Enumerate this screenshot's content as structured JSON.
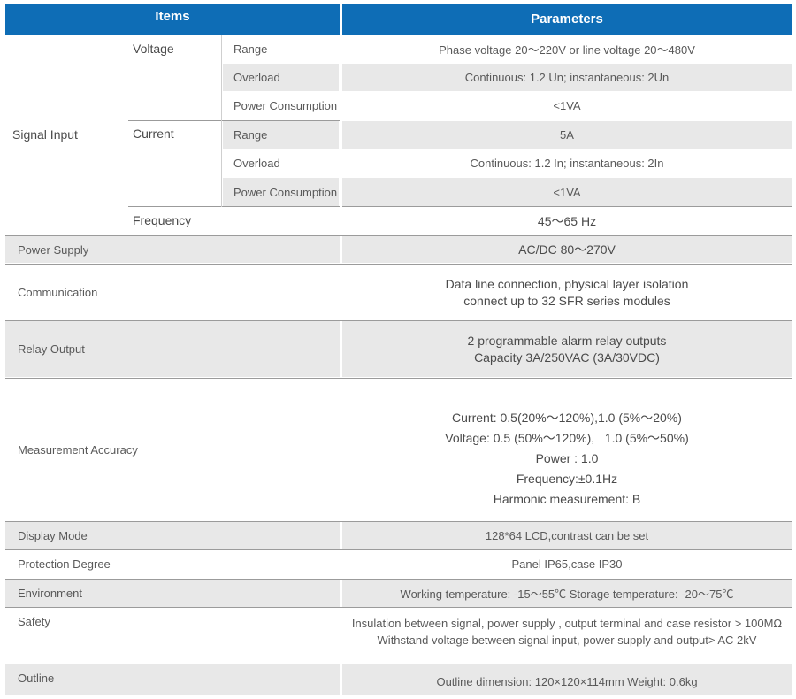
{
  "header": {
    "items": "Items",
    "parameters": "Parameters"
  },
  "signal_input": {
    "label": "Signal Input",
    "voltage": {
      "label": "Voltage",
      "range_label": "Range",
      "range_value": "Phase voltage 20～220V or line voltage 20～480V",
      "overload_label": "Overload",
      "overload_value": "Continuous: 1.2 Un; instantaneous: 2Un",
      "power_label": "Power Consumption",
      "power_value": "<1VA"
    },
    "current": {
      "label": "Current",
      "range_label": "Range",
      "range_value": "5A",
      "overload_label": "Overload",
      "overload_value": "Continuous: 1.2 In; instantaneous: 2In",
      "power_label": "Power Consumption",
      "power_value": "<1VA"
    },
    "frequency": {
      "label": "Frequency",
      "value": "45～65 Hz"
    }
  },
  "power_supply": {
    "label": "Power Supply",
    "value": "AC/DC 80～270V"
  },
  "communication": {
    "label": "Communication",
    "lines": [
      "Data line connection, physical layer isolation",
      "connect up to 32 SFR series modules"
    ]
  },
  "relay_output": {
    "label": "Relay Output",
    "lines": [
      "2 programmable alarm relay outputs",
      "Capacity 3A/250VAC (3A/30VDC)"
    ]
  },
  "measurement_accuracy": {
    "label": "Measurement Accuracy",
    "lines": [
      "Current: 0.5(20%～120%),1.0 (5%～20%)",
      "Voltage: 0.5 (50%～120%),   1.0 (5%～50%)",
      "Power : 1.0",
      "Frequency:±0.1Hz",
      "Harmonic measurement: B"
    ]
  },
  "display_mode": {
    "label": "Display Mode",
    "value": "128*64 LCD,contrast can be set"
  },
  "protection_degree": {
    "label": "Protection Degree",
    "value": "Panel IP65,case IP30"
  },
  "environment": {
    "label": "Environment",
    "value": "Working temperature: -15～55℃ Storage temperature: -20～75℃"
  },
  "safety": {
    "label": "Safety",
    "lines": [
      "Insulation between signal, power supply , output terminal and case resistor > 100MΩ",
      "Withstand voltage between signal input, power supply and output> AC 2kV"
    ]
  },
  "outline": {
    "label": "Outline",
    "value": "Outline dimension: 120×120×114mm Weight: 0.6kg"
  },
  "colors": {
    "header_blue": "#0e6db6",
    "row_gray": "#e8e8e8"
  }
}
